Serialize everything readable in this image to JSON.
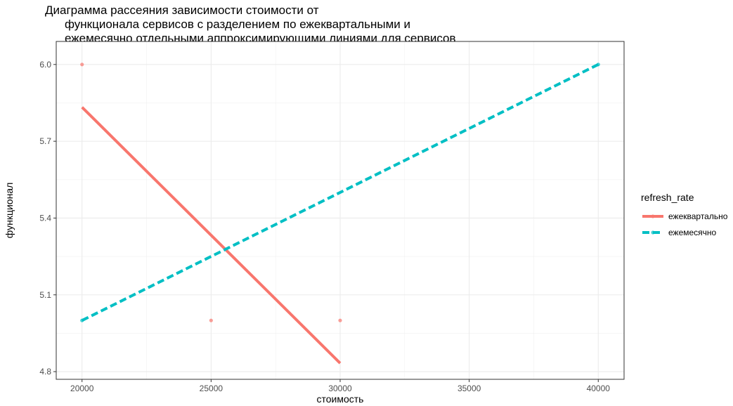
{
  "chart_data": {
    "type": "scatter",
    "title_lines": [
      "Диаграмма рассеяния зависимости стоимости от",
      "функционала сервисов с разделением по ежеквартальными и",
      "ежемесячно отдельными аппроксимирующими линиями для сервисов"
    ],
    "xlabel": "стоимость",
    "ylabel": "функционал",
    "xlim": [
      19000,
      41000
    ],
    "ylim": [
      4.77,
      6.09
    ],
    "x_ticks": [
      20000,
      25000,
      30000,
      35000,
      40000
    ],
    "y_ticks": [
      4.8,
      5.1,
      5.4,
      5.7,
      6.0
    ],
    "y_tick_labels": [
      "4.8",
      "5.1",
      "5.4",
      "5.7",
      "6.0"
    ],
    "grid": true,
    "legend": {
      "title": "refresh_rate",
      "position": "right"
    },
    "series": [
      {
        "name": "ежеквартально",
        "color": "#F8766D",
        "points": [
          {
            "x": 20000,
            "y": 6.0
          },
          {
            "x": 25000,
            "y": 5.0
          },
          {
            "x": 30000,
            "y": 5.0
          }
        ],
        "fit_line": {
          "x": [
            20000,
            30000
          ],
          "y": [
            5.833,
            4.833
          ]
        },
        "line_style": "solid"
      },
      {
        "name": "ежемесячно",
        "color": "#00BFC4",
        "points": [
          {
            "x": 20000,
            "y": 5.0
          },
          {
            "x": 40000,
            "y": 6.0
          }
        ],
        "fit_line": {
          "x": [
            20000,
            40000
          ],
          "y": [
            5.0,
            6.0
          ]
        },
        "line_style": "dashed"
      }
    ]
  }
}
